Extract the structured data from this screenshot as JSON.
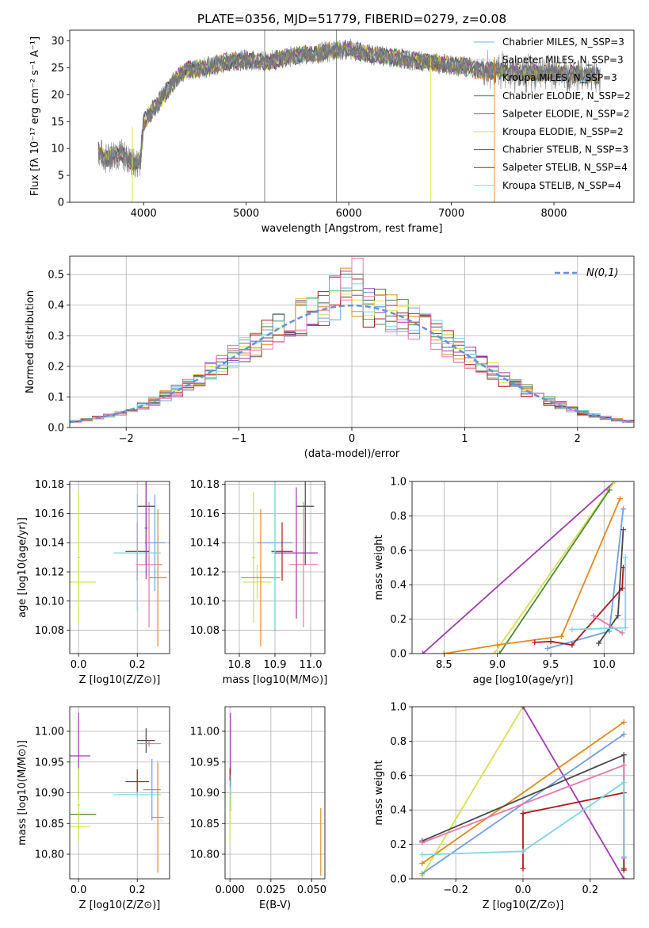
{
  "title": "PLATE=0356, MJD=51779, FIBERID=0279, z=0.08",
  "chart_data": [
    {
      "id": "spectrum",
      "type": "line",
      "xlabel": "wavelength [Angstrom, rest frame]",
      "ylabel": "Flux [fλ 10⁻¹⁷ erg cm⁻² s⁻¹ A⁻¹]",
      "xlim": [
        3280,
        8780
      ],
      "ylim": [
        0,
        32
      ],
      "xticks": [
        4000,
        5000,
        6000,
        7000,
        8000
      ],
      "yticks": [
        0,
        5,
        10,
        15,
        20,
        25,
        30
      ],
      "grid": false,
      "legend": "top-right",
      "continuum": {
        "x": [
          3560,
          3640,
          3700,
          3780,
          3850,
          3920,
          3970,
          4000,
          4100,
          4200,
          4300,
          4400,
          4600,
          4800,
          5000,
          5200,
          5400,
          5600,
          5800,
          6000,
          6200,
          6400,
          6600,
          6800,
          7000,
          7200,
          7400,
          7600,
          7800,
          8000,
          8200,
          8400
        ],
        "y": [
          9.5,
          8,
          9,
          9,
          8,
          7,
          8,
          15,
          17.5,
          20,
          22.5,
          24.5,
          25,
          26,
          26.5,
          26,
          27,
          27.5,
          28,
          28.5,
          27.5,
          27,
          26.5,
          26,
          25.5,
          25,
          24.5,
          24.2,
          24,
          24,
          23.8,
          23.5
        ]
      },
      "series": [
        {
          "name": "Chabrier MILES, N_SSP=3",
          "color": "#6fb0ec"
        },
        {
          "name": "Salpeter MILES, N_SSP=3",
          "color": "#cccccc"
        },
        {
          "name": "Kroupa MILES, N_SSP=3",
          "color": "#e08a1c"
        },
        {
          "name": "Chabrier ELODIE, N_SSP=2",
          "color": "#4c8a3c"
        },
        {
          "name": "Salpeter ELODIE, N_SSP=2",
          "color": "#9c3cac"
        },
        {
          "name": "Kroupa ELODIE, N_SSP=2",
          "color": "#dcdc3c"
        },
        {
          "name": "Chabrier STELIB, N_SSP=3",
          "color": "#5a5a5a"
        },
        {
          "name": "Salpeter STELIB, N_SSP=4",
          "color": "#a81c1c"
        },
        {
          "name": "Kroupa STELIB, N_SSP=4",
          "color": "#7ad8e0"
        }
      ]
    },
    {
      "id": "residuals",
      "type": "histogram",
      "xlabel": "(data-model)/error",
      "ylabel": "Normed distribution",
      "xlim": [
        -2.5,
        2.5
      ],
      "ylim": [
        0,
        0.56
      ],
      "xticks": [
        -2,
        -1,
        0,
        1,
        2
      ],
      "yticks": [
        0.0,
        0.1,
        0.2,
        0.3,
        0.4,
        0.5
      ],
      "grid": true,
      "legend_label": "N(0,1)",
      "legend": "top-right",
      "bin_width": 0.1
    },
    {
      "id": "age-Z",
      "type": "errorbar",
      "xlabel": "Z [log10(Z/Z⊙)]",
      "ylabel": "age [log10(age/yr)]",
      "xlim": [
        -0.03,
        0.31
      ],
      "ylim": [
        10.064,
        10.182
      ],
      "xticks": [
        0.0,
        0.2
      ],
      "yticks": [
        10.08,
        10.1,
        10.12,
        10.14,
        10.16,
        10.18
      ],
      "grid": true,
      "points": [
        {
          "color": "#d8e050",
          "x": 0.0,
          "y": 10.113,
          "xerr": 0.06,
          "yerr": 0.013
        },
        {
          "color": "#c8e050",
          "x": 0.0,
          "y": 10.13,
          "xerr": 0.005,
          "yerr": 0.045
        },
        {
          "color": "#6fa0e0",
          "x": 0.26,
          "y": 10.14,
          "xerr": 0.035,
          "yerr": 0.033
        },
        {
          "color": "#e08a1c",
          "x": 0.27,
          "y": 10.116,
          "xerr": 0.03,
          "yerr": 0.047
        },
        {
          "color": "#e878a8",
          "x": 0.24,
          "y": 10.125,
          "xerr": 0.045,
          "yerr": 0.043
        },
        {
          "color": "#a81c1c",
          "x": 0.2,
          "y": 10.134,
          "xerr": 0.04,
          "yerr": 0.02
        },
        {
          "color": "#484848",
          "x": 0.23,
          "y": 10.165,
          "xerr": 0.03,
          "yerr": 0.04
        },
        {
          "color": "#7ad8e0",
          "x": 0.2,
          "y": 10.133,
          "xerr": 0.08,
          "yerr": 0.04
        },
        {
          "color": "#9c3cac",
          "x": 0.23,
          "y": 10.15,
          "xerr": 0.005,
          "yerr": 0.035
        }
      ]
    },
    {
      "id": "age-mass",
      "type": "errorbar",
      "xlabel": "mass [log10(M/M⊙)]",
      "xlim": [
        10.76,
        11.04
      ],
      "ylim": [
        10.064,
        10.182
      ],
      "xticks": [
        10.8,
        10.9,
        11.0
      ],
      "yticks": [
        10.08,
        10.1,
        10.12,
        10.14,
        10.16,
        10.18
      ],
      "grid": true,
      "points": [
        {
          "color": "#d8e050",
          "x": 10.85,
          "y": 10.113,
          "xerr": 0.04,
          "yerr": 0.012
        },
        {
          "color": "#c8e050",
          "x": 10.84,
          "y": 10.13,
          "xerr": 0.005,
          "yerr": 0.045
        },
        {
          "color": "#6fa0e0",
          "x": 10.9,
          "y": 10.14,
          "xerr": 0.05,
          "yerr": 0.06
        },
        {
          "color": "#e08a1c",
          "x": 10.86,
          "y": 10.116,
          "xerr": 0.055,
          "yerr": 0.047
        },
        {
          "color": "#e878a8",
          "x": 10.98,
          "y": 10.125,
          "xerr": 0.04,
          "yerr": 0.043
        },
        {
          "color": "#a81c1c",
          "x": 10.92,
          "y": 10.134,
          "xerr": 0.03,
          "yerr": 0.02
        },
        {
          "color": "#484848",
          "x": 10.985,
          "y": 10.165,
          "xerr": 0.025,
          "yerr": 0.04
        },
        {
          "color": "#7ad8e0",
          "x": 10.9,
          "y": 10.133,
          "xerr": 0.01,
          "yerr": 0.052
        },
        {
          "color": "#9c3cac",
          "x": 10.96,
          "y": 10.133,
          "xerr": 0.06,
          "yerr": 0.045
        }
      ]
    },
    {
      "id": "weight-age",
      "type": "line",
      "xlabel": "age  [log10(age/yr)]",
      "ylabel": "mass weight",
      "xlim": [
        8.2,
        10.28
      ],
      "ylim": [
        0,
        1
      ],
      "xticks": [
        8.5,
        9.0,
        9.5,
        10.0
      ],
      "yticks": [
        0.0,
        0.2,
        0.4,
        0.6,
        0.8,
        1.0
      ],
      "grid": true,
      "series": [
        {
          "color": "#9c3cac",
          "x": [
            8.3,
            10.1
          ],
          "y": [
            0.0,
            1.0
          ]
        },
        {
          "color": "#d8e050",
          "x": [
            8.97,
            10.1
          ],
          "y": [
            0.0,
            1.0
          ]
        },
        {
          "color": "#4c8a3c",
          "x": [
            9.02,
            10.05
          ],
          "y": [
            0.0,
            0.95
          ]
        },
        {
          "color": "#e08a1c",
          "x": [
            8.5,
            9.0,
            9.6,
            10.15
          ],
          "y": [
            0.0,
            0.05,
            0.1,
            0.9
          ]
        },
        {
          "color": "#6fa0e0",
          "x": [
            9.47,
            10.05,
            10.18
          ],
          "y": [
            0.03,
            0.13,
            0.84
          ]
        },
        {
          "color": "#a81c1c",
          "x": [
            9.35,
            9.5,
            9.7,
            10.17,
            10.18
          ],
          "y": [
            0.065,
            0.07,
            0.05,
            0.38,
            0.5
          ]
        },
        {
          "color": "#484848",
          "x": [
            9.95,
            10.13,
            10.18
          ],
          "y": [
            0.06,
            0.22,
            0.72
          ]
        },
        {
          "color": "#e878a8",
          "x": [
            9.9,
            10.17
          ],
          "y": [
            0.22,
            0.12
          ]
        },
        {
          "color": "#7ad8e0",
          "x": [
            9.7,
            10.2,
            10.2
          ],
          "y": [
            0.14,
            0.15,
            0.56
          ]
        }
      ]
    },
    {
      "id": "mass-Z",
      "type": "errorbar",
      "xlabel": "Z [log10(Z/Z⊙)]",
      "ylabel": "mass [log10(M/M⊙)]",
      "xlim": [
        -0.03,
        0.31
      ],
      "ylim": [
        10.76,
        11.04
      ],
      "xticks": [
        0.0,
        0.2
      ],
      "yticks": [
        10.8,
        10.85,
        10.9,
        10.95,
        11.0
      ],
      "grid": true,
      "points": [
        {
          "color": "#9c3cac",
          "x": 0.0,
          "y": 10.96,
          "xerr": 0.04,
          "yerr": 0.07
        },
        {
          "color": "#4c8a3c",
          "x": 0.0,
          "y": 10.865,
          "xerr": 0.06,
          "yerr": 0.005
        },
        {
          "color": "#d8e050",
          "x": 0.0,
          "y": 10.845,
          "xerr": 0.04,
          "yerr": 0.02
        },
        {
          "color": "#c8e050",
          "x": 0.0,
          "y": 10.88,
          "xerr": 0.005,
          "yerr": 0.06
        },
        {
          "color": "#a81c1c",
          "x": 0.2,
          "y": 10.918,
          "xerr": 0.04,
          "yerr": 0.02
        },
        {
          "color": "#484848",
          "x": 0.23,
          "y": 10.985,
          "xerr": 0.03,
          "yerr": 0.02
        },
        {
          "color": "#e878a8",
          "x": 0.24,
          "y": 10.98,
          "xerr": 0.04,
          "yerr": 0.005
        },
        {
          "color": "#6fa0e0",
          "x": 0.25,
          "y": 10.905,
          "xerr": 0.03,
          "yerr": 0.05
        },
        {
          "color": "#7ad8e0",
          "x": 0.2,
          "y": 10.897,
          "xerr": 0.08,
          "yerr": 0.005
        },
        {
          "color": "#e08a1c",
          "x": 0.27,
          "y": 10.86,
          "xerr": 0.02,
          "yerr": 0.09
        }
      ]
    },
    {
      "id": "mass-EBV",
      "type": "errorbar",
      "xlabel": "E(B-V)",
      "xlim": [
        -0.003,
        0.058
      ],
      "ylim": [
        10.76,
        11.04
      ],
      "xticks": [
        0.0,
        0.025,
        0.05
      ],
      "yticks": [
        10.8,
        10.85,
        10.9,
        10.95,
        11.0
      ],
      "grid": true,
      "points": [
        {
          "color": "#9c3cac",
          "x": 0.0003,
          "y": 10.97,
          "xerr": 0.0,
          "yerr": 0.06
        },
        {
          "color": "#a81c1c",
          "x": 0.0,
          "y": 10.93,
          "xerr": 0.0,
          "yerr": 0.01
        },
        {
          "color": "#7ad8e0",
          "x": 0.0005,
          "y": 10.9,
          "xerr": 0.0,
          "yerr": 0.03
        },
        {
          "color": "#c8e050",
          "x": 0.0,
          "y": 10.86,
          "xerr": 0.0,
          "yerr": 0.04
        },
        {
          "color": "#e08a1c",
          "x": 0.0555,
          "y": 10.82,
          "xerr": 0.0,
          "yerr": 0.055
        }
      ]
    },
    {
      "id": "weight-Z",
      "type": "line",
      "xlabel": "Z [log10(Z/Z⊙)]",
      "ylabel": "mass weight",
      "xlim": [
        -0.33,
        0.33
      ],
      "ylim": [
        0,
        1
      ],
      "xticks": [
        -0.2,
        0.0,
        0.2
      ],
      "yticks": [
        0.0,
        0.2,
        0.4,
        0.6,
        0.8,
        1.0
      ],
      "grid": true,
      "series": [
        {
          "color": "#d8e050",
          "x": [
            -0.3,
            0.0
          ],
          "y": [
            0.02,
            1.0
          ]
        },
        {
          "color": "#9c3cac",
          "x": [
            0.0,
            0.3
          ],
          "y": [
            1.0,
            0.0
          ]
        },
        {
          "color": "#e08a1c",
          "x": [
            -0.3,
            0.3
          ],
          "y": [
            0.09,
            0.91
          ]
        },
        {
          "color": "#6fa0e0",
          "x": [
            -0.3,
            0.3
          ],
          "y": [
            0.03,
            0.84
          ]
        },
        {
          "color": "#484848",
          "x": [
            -0.3,
            0.3,
            0.3
          ],
          "y": [
            0.22,
            0.72,
            0.06
          ]
        },
        {
          "color": "#e878a8",
          "x": [
            -0.3,
            0.3,
            0.3
          ],
          "y": [
            0.21,
            0.66,
            0.12
          ]
        },
        {
          "color": "#a81c1c",
          "x": [
            0.0,
            0.0,
            0.3,
            0.3
          ],
          "y": [
            0.06,
            0.38,
            0.5,
            0.05
          ]
        },
        {
          "color": "#7ad8e0",
          "x": [
            -0.3,
            0.0,
            0.3,
            0.3
          ],
          "y": [
            0.14,
            0.16,
            0.56,
            0.13
          ]
        }
      ]
    }
  ]
}
